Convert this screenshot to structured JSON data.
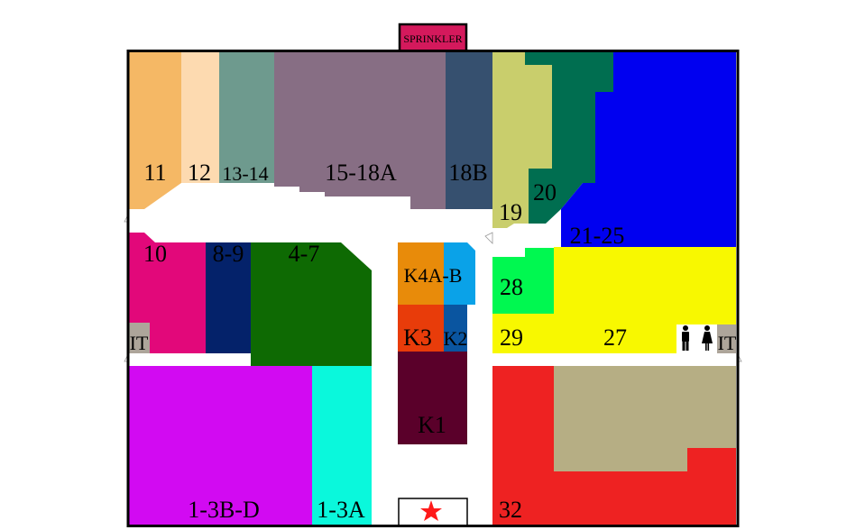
{
  "map": {
    "sprinkler": {
      "label": "SPRINKLER",
      "color": "#D4195C"
    },
    "units": [
      {
        "id": "11",
        "label": "11",
        "color": "#F5B865"
      },
      {
        "id": "12",
        "label": "12",
        "color": "#FDDAB0"
      },
      {
        "id": "13-14",
        "label": "13-14",
        "color": "#6E9A8E"
      },
      {
        "id": "15-18A",
        "label": "15-18A",
        "color": "#876E84"
      },
      {
        "id": "18B",
        "label": "18B",
        "color": "#36506F"
      },
      {
        "id": "19",
        "label": "19",
        "color": "#C9CE6C"
      },
      {
        "id": "20",
        "label": "20",
        "color": "#006E50"
      },
      {
        "id": "21-25",
        "label": "21-25",
        "color": "#0000F0"
      },
      {
        "id": "10",
        "label": "10",
        "color": "#E2087A"
      },
      {
        "id": "8-9",
        "label": "8-9",
        "color": "#04226A"
      },
      {
        "id": "4-7",
        "label": "4-7",
        "color": "#0E6A03"
      },
      {
        "id": "K4A-B",
        "label": "K4A-B",
        "color": "#E88B0A",
        "color2": "#0AA2E8"
      },
      {
        "id": "K3",
        "label": "K3",
        "color": "#E83C0A"
      },
      {
        "id": "K2",
        "label": "K2",
        "color": "#0A55A0"
      },
      {
        "id": "K1",
        "label": "K1",
        "color": "#5A002A"
      },
      {
        "id": "28",
        "label": "28",
        "color": "#00F850"
      },
      {
        "id": "29",
        "label": "29",
        "color": "#F8F800"
      },
      {
        "id": "27",
        "label": "27",
        "color": "#F8F800"
      },
      {
        "id": "1-3B-D",
        "label": "1-3B-D",
        "color": "#D20AF2"
      },
      {
        "id": "1-3A",
        "label": "1-3A",
        "color": "#0AF8DC"
      },
      {
        "id": "32",
        "label": "32",
        "color": "#EE2222",
        "color2": "#B6AE84"
      }
    ],
    "it_rooms": [
      {
        "label": "IT",
        "color": "#ADA59A"
      },
      {
        "label": "IT",
        "color": "#ADA59A"
      }
    ],
    "restroom_icons": [
      "man-icon",
      "woman-icon"
    ],
    "entrance": {
      "icon": "star-icon",
      "color": "#FF1A1A"
    }
  }
}
